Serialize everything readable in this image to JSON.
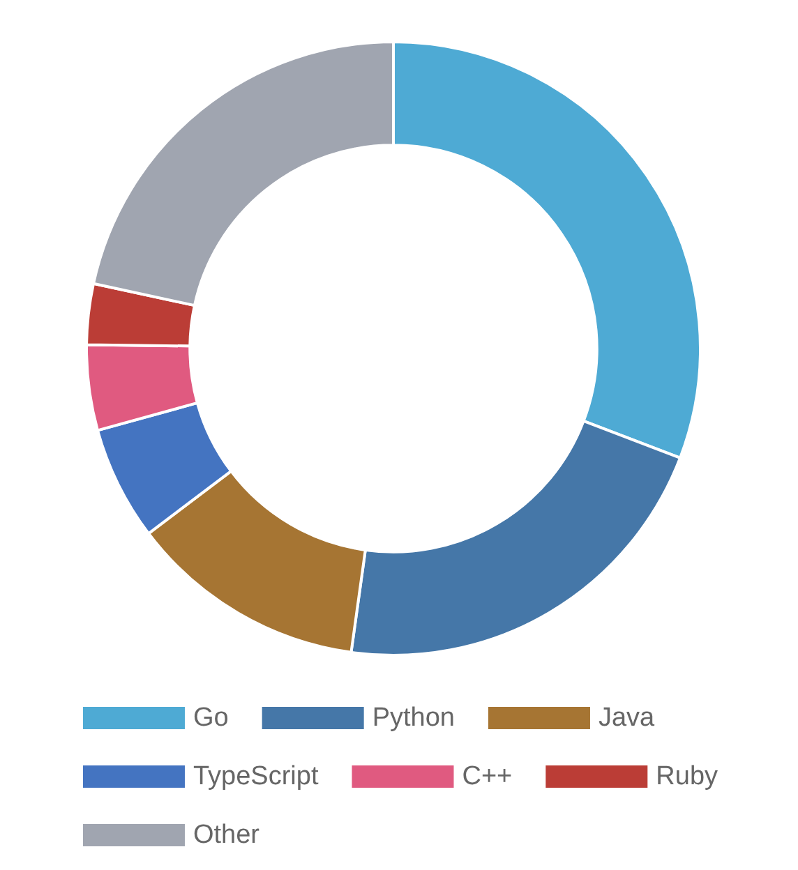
{
  "chart_data": {
    "type": "donut",
    "categories": [
      "Go",
      "Python",
      "Java",
      "TypeScript",
      "C++",
      "Ruby",
      "Other"
    ],
    "values": [
      30.8,
      21.4,
      12.5,
      6,
      4.5,
      3.2,
      21.6
    ],
    "colors": [
      "#4eaad4",
      "#4577a8",
      "#a67533",
      "#4474c1",
      "#e05a80",
      "#bb3d36",
      "#a0a5b0"
    ],
    "legend": "bottom"
  }
}
